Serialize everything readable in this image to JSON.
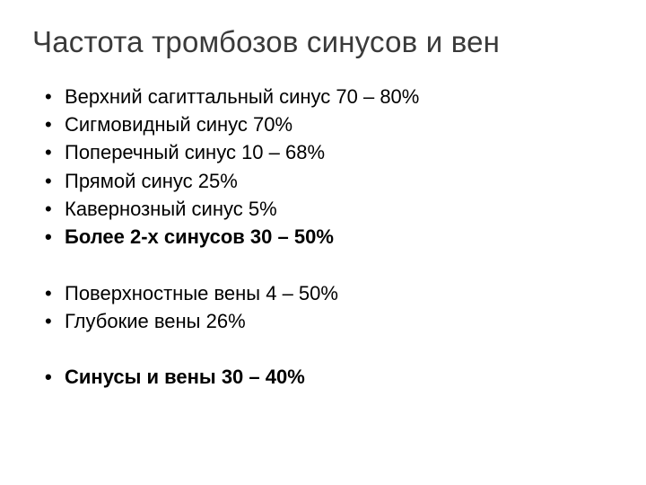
{
  "slide": {
    "title": "Частота тромбозов синусов и вен",
    "title_color": "#3a3a3a",
    "title_fontsize": 33,
    "background_color": "#ffffff",
    "text_color": "#000000",
    "bullet_fontsize": 22,
    "items": [
      {
        "text": "Верхний сагиттальный синус 70 – 80%",
        "bold": false
      },
      {
        "text": "Сигмовидный синус 70%",
        "bold": false
      },
      {
        "text": "Поперечный  синус 10 – 68%",
        "bold": false
      },
      {
        "text": "Прямой синус 25%",
        "bold": false
      },
      {
        "text": "Кавернозный синус 5%",
        "bold": false
      },
      {
        "text": "Более 2-х синусов 30 – 50%",
        "bold": true
      },
      {
        "text": "",
        "spacer": true
      },
      {
        "text": "Поверхностные вены 4 – 50%",
        "bold": false
      },
      {
        "text": "Глубокие вены 26%",
        "bold": false
      },
      {
        "text": "",
        "spacer": true
      },
      {
        "text": "Синусы и вены 30 – 40%",
        "bold": true
      }
    ]
  }
}
